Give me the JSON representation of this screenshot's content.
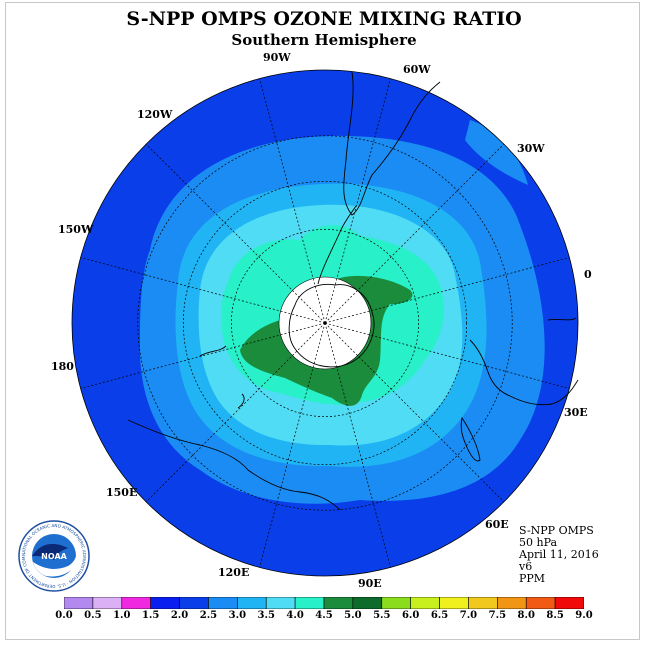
{
  "header": {
    "title": "S-NPP OMPS OZONE MIXING RATIO",
    "subtitle": "Southern Hemisphere"
  },
  "map": {
    "projection": "south polar stereographic",
    "longitude_labels": [
      "90W",
      "60W",
      "30W",
      "0",
      "30E",
      "60E",
      "90E",
      "120E",
      "150E",
      "180",
      "150W",
      "120W"
    ],
    "missing_data_color": "#ffffff",
    "colors": {
      "band_2_0_2_5": "#0a3ee8",
      "band_2_5_3_0": "#1a8cf4",
      "band_3_0_3_5": "#20b4f4",
      "band_3_5_4_0": "#50dcf4",
      "band_4_0_4_5": "#28f0c8",
      "band_4_5_5_0": "#1a8c3c",
      "band_5_0_5_5": "#0d6b2c",
      "coastline": "#000000"
    }
  },
  "info": {
    "product": "S-NPP OMPS",
    "level": "50 hPa",
    "date": "April 11, 2016",
    "version": "v6",
    "units": "PPM"
  },
  "logo": {
    "name": "NOAA",
    "ring_text": "NATIONAL OCEANIC AND ATMOSPHERIC ADMINISTRATION · U.S. DEPARTMENT OF COMMERCE"
  },
  "colorbar": {
    "ticks": [
      "0.0",
      "0.5",
      "1.0",
      "1.5",
      "2.0",
      "2.5",
      "3.0",
      "3.5",
      "4.0",
      "4.5",
      "5.0",
      "5.5",
      "6.0",
      "6.5",
      "7.0",
      "7.5",
      "8.0",
      "8.5",
      "9.0"
    ],
    "colors": [
      "#b388ef",
      "#dcb0f4",
      "#f028e0",
      "#0a1ef0",
      "#0a3ee8",
      "#1a8cf4",
      "#20b4f4",
      "#50dcf4",
      "#28f0c8",
      "#1a8c3c",
      "#0d6b2c",
      "#8cdc1e",
      "#c8f01e",
      "#f0f01e",
      "#f0c81e",
      "#f09614",
      "#f05a14",
      "#f00a0a",
      "#8c5a3c"
    ]
  }
}
